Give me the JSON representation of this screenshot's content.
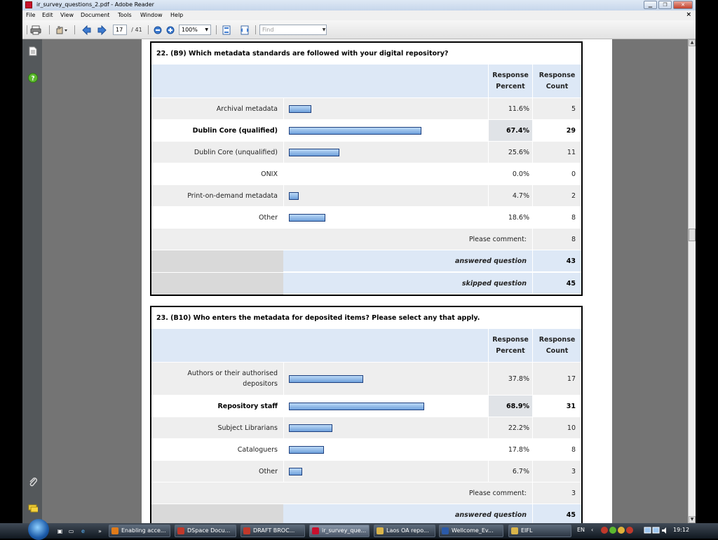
{
  "window": {
    "title": "ir_survey_questions_2.pdf - Adobe Reader",
    "menu": [
      "File",
      "Edit",
      "View",
      "Document",
      "Tools",
      "Window",
      "Help"
    ],
    "close_doc": "×"
  },
  "toolbar": {
    "page_current": "17",
    "page_total": "/ 41",
    "zoom": "100%",
    "find_placeholder": "Find"
  },
  "q22": {
    "title": "22. (B9) Which metadata standards are followed with your digital repository?",
    "col_percent": "Response Percent",
    "col_count": "Response Count",
    "rows": [
      {
        "label": "Archival metadata",
        "percent": "11.6%",
        "count": "5",
        "value": 11.6,
        "bold": false
      },
      {
        "label": "Dublin Core (qualified)",
        "percent": "67.4%",
        "count": "29",
        "value": 67.4,
        "bold": true
      },
      {
        "label": "Dublin Core (unqualified)",
        "percent": "25.6%",
        "count": "11",
        "value": 25.6,
        "bold": false
      },
      {
        "label": "ONIX",
        "percent": "0.0%",
        "count": "0",
        "value": 0,
        "bold": false
      },
      {
        "label": "Print-on-demand metadata",
        "percent": "4.7%",
        "count": "2",
        "value": 4.7,
        "bold": false
      },
      {
        "label": "Other",
        "percent": "18.6%",
        "count": "8",
        "value": 18.6,
        "bold": false
      }
    ],
    "comment_label": "Please comment:",
    "comment_count": "8",
    "answered_label": "answered question",
    "answered_count": "43",
    "skipped_label": "skipped question",
    "skipped_count": "45"
  },
  "q23": {
    "title": "23. (B10) Who enters the metadata for deposited items? Please select any that apply.",
    "col_percent": "Response Percent",
    "col_count": "Response Count",
    "rows": [
      {
        "label": "Authors or their authorised depositors",
        "percent": "37.8%",
        "count": "17",
        "value": 37.8,
        "bold": false
      },
      {
        "label": "Repository staff",
        "percent": "68.9%",
        "count": "31",
        "value": 68.9,
        "bold": true
      },
      {
        "label": "Subject Librarians",
        "percent": "22.2%",
        "count": "10",
        "value": 22.2,
        "bold": false
      },
      {
        "label": "Cataloguers",
        "percent": "17.8%",
        "count": "8",
        "value": 17.8,
        "bold": false
      },
      {
        "label": "Other",
        "percent": "6.7%",
        "count": "3",
        "value": 6.7,
        "bold": false
      }
    ],
    "comment_label": "Please comment:",
    "comment_count": "3",
    "answered_label": "answered question",
    "answered_count": "45"
  },
  "taskbar": {
    "quicklaunch_more": "»",
    "buttons": [
      {
        "label": "Enabling acce...",
        "color": "#e07b1a"
      },
      {
        "label": "DSpace Docu...",
        "color": "#c0392b"
      },
      {
        "label": "DRAFT BROC...",
        "color": "#c0392b"
      },
      {
        "label": "ir_survey_que...",
        "color": "#c8102e"
      },
      {
        "label": "Laos OA repo...",
        "color": "#d9b44a"
      },
      {
        "label": "Wellcome_Ev...",
        "color": "#2b5aa8"
      },
      {
        "label": "EIFL",
        "color": "#d9b44a"
      }
    ],
    "lang": "EN",
    "clock": "19:12"
  }
}
